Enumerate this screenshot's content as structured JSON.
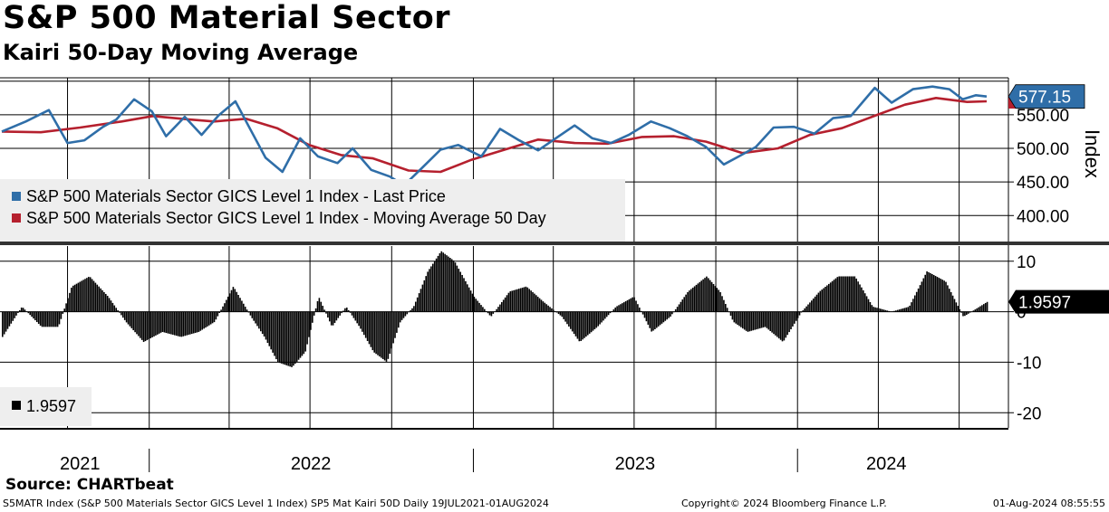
{
  "title": "S&P 500 Material Sector",
  "subtitle": "Kairi 50-Day Moving Average",
  "source": "Source: CHARTbeat",
  "footer": {
    "left": "S5MATR Index (S&P 500 Materials Sector GICS Level 1 Index) SP5 Mat Kairi 50D  Daily 19JUL2021-01AUG2024",
    "middle": "Copyright© 2024 Bloomberg Finance L.P.",
    "right": "01-Aug-2024 08:55:55"
  },
  "colors": {
    "price": "#2f6ea8",
    "moving_average": "#b5202e",
    "kairi": "#000000",
    "grid": "#000000",
    "legend_bg": "#eeeeee"
  },
  "chart_data": [
    {
      "type": "line",
      "x_range": [
        "2021-07-19",
        "2024-08-01"
      ],
      "ylabel": "Index",
      "y_ticks": [
        "400.00",
        "450.00",
        "500.00",
        "550.00"
      ],
      "ylim": [
        360,
        605
      ],
      "last_value_label": "577.15",
      "legend": [
        "S&P 500 Materials Sector GICS Level 1 Index - Last Price",
        "S&P 500 Materials Sector GICS Level 1 Index - Moving Average 50 Day"
      ],
      "series": [
        {
          "name": "S&P 500 Materials Sector GICS Level 1 Index - Last Price",
          "x": [
            "2021-07-19",
            "2021-08-15",
            "2021-09-10",
            "2021-10-01",
            "2021-10-20",
            "2021-11-10",
            "2021-11-25",
            "2021-12-15",
            "2022-01-04",
            "2022-01-20",
            "2022-02-10",
            "2022-03-01",
            "2022-03-20",
            "2022-04-08",
            "2022-04-25",
            "2022-05-12",
            "2022-05-31",
            "2022-06-20",
            "2022-07-10",
            "2022-08-01",
            "2022-08-18",
            "2022-09-08",
            "2022-09-29",
            "2022-10-15",
            "2022-11-05",
            "2022-11-25",
            "2022-12-15",
            "2023-01-10",
            "2023-01-31",
            "2023-02-20",
            "2023-03-15",
            "2023-04-05",
            "2023-04-25",
            "2023-05-15",
            "2023-06-05",
            "2023-06-25",
            "2023-07-20",
            "2023-08-10",
            "2023-08-30",
            "2023-09-20",
            "2023-10-10",
            "2023-10-27",
            "2023-11-15",
            "2023-12-05",
            "2023-12-28",
            "2024-01-20",
            "2024-02-10",
            "2024-03-01",
            "2024-03-28",
            "2024-04-16",
            "2024-05-10",
            "2024-06-01",
            "2024-06-20",
            "2024-07-05",
            "2024-07-20",
            "2024-08-01"
          ],
          "values": [
            525,
            540,
            557,
            508,
            512,
            532,
            543,
            573,
            555,
            518,
            547,
            520,
            549,
            570,
            528,
            486,
            465,
            515,
            488,
            478,
            500,
            468,
            458,
            445,
            472,
            498,
            505,
            488,
            529,
            513,
            497,
            516,
            534,
            515,
            508,
            520,
            540,
            530,
            518,
            502,
            476,
            488,
            502,
            531,
            532,
            522,
            545,
            548,
            590,
            568,
            588,
            592,
            588,
            573,
            579,
            577.15
          ]
        },
        {
          "name": "S&P 500 Materials Sector GICS Level 1 Index - Moving Average 50 Day",
          "x": [
            "2021-07-19",
            "2021-09-01",
            "2021-10-15",
            "2021-12-01",
            "2022-01-05",
            "2022-02-15",
            "2022-03-15",
            "2022-04-20",
            "2022-05-25",
            "2022-06-30",
            "2022-08-05",
            "2022-09-10",
            "2022-10-20",
            "2022-11-25",
            "2022-12-30",
            "2023-02-05",
            "2023-03-15",
            "2023-04-25",
            "2023-06-01",
            "2023-07-10",
            "2023-08-15",
            "2023-09-20",
            "2023-10-31",
            "2023-12-10",
            "2024-01-15",
            "2024-02-20",
            "2024-03-31",
            "2024-05-01",
            "2024-06-05",
            "2024-07-10",
            "2024-08-01"
          ],
          "values": [
            525,
            524,
            531,
            540,
            548,
            543,
            540,
            544,
            530,
            505,
            490,
            485,
            467,
            465,
            483,
            498,
            513,
            508,
            507,
            517,
            518,
            510,
            493,
            500,
            520,
            530,
            550,
            565,
            575,
            569,
            570
          ]
        }
      ]
    },
    {
      "type": "bar",
      "x_range": [
        "2021-07-19",
        "2024-08-01"
      ],
      "y_ticks": [
        10,
        0,
        -10,
        -20
      ],
      "ylim": [
        -23,
        13
      ],
      "last_value_label": "1.9597",
      "legend": [
        "1.9597"
      ],
      "series": [
        {
          "x": [
            "2021-07-19",
            "2021-08-10",
            "2021-09-01",
            "2021-09-20",
            "2021-10-05",
            "2021-10-25",
            "2021-11-15",
            "2021-12-05",
            "2021-12-25",
            "2022-01-15",
            "2022-02-05",
            "2022-02-25",
            "2022-03-15",
            "2022-04-05",
            "2022-04-25",
            "2022-05-10",
            "2022-05-25",
            "2022-06-10",
            "2022-06-25",
            "2022-07-10",
            "2022-07-25",
            "2022-08-10",
            "2022-08-25",
            "2022-09-10",
            "2022-09-25",
            "2022-10-10",
            "2022-10-25",
            "2022-11-10",
            "2022-11-25",
            "2022-12-10",
            "2023-01-01",
            "2023-01-20",
            "2023-02-10",
            "2023-03-01",
            "2023-03-20",
            "2023-04-10",
            "2023-04-30",
            "2023-05-20",
            "2023-06-10",
            "2023-06-30",
            "2023-07-20",
            "2023-08-10",
            "2023-08-30",
            "2023-09-20",
            "2023-10-05",
            "2023-10-20",
            "2023-11-05",
            "2023-11-25",
            "2023-12-15",
            "2024-01-05",
            "2024-01-25",
            "2024-02-15",
            "2024-03-05",
            "2024-03-25",
            "2024-04-15",
            "2024-05-05",
            "2024-05-25",
            "2024-06-15",
            "2024-07-05",
            "2024-08-01"
          ],
          "values": [
            -5,
            1,
            -3,
            -3,
            5,
            7,
            3,
            -2,
            -6,
            -4,
            -5,
            -4,
            -2,
            5,
            -1,
            -5,
            -10,
            -11,
            -8,
            3,
            -3,
            1,
            -3,
            -8,
            -10,
            -2,
            1,
            8,
            12,
            10,
            3,
            -1,
            4,
            5,
            2,
            -1,
            -6,
            -3,
            1,
            3,
            -4,
            -1,
            4,
            7,
            4,
            -2,
            -4,
            -3,
            -6,
            0,
            4,
            7,
            7,
            1,
            0,
            1,
            8,
            6,
            -1,
            1.96
          ]
        }
      ]
    }
  ],
  "x_axis": {
    "years": [
      "2021",
      "2022",
      "2023",
      "2024"
    ]
  }
}
